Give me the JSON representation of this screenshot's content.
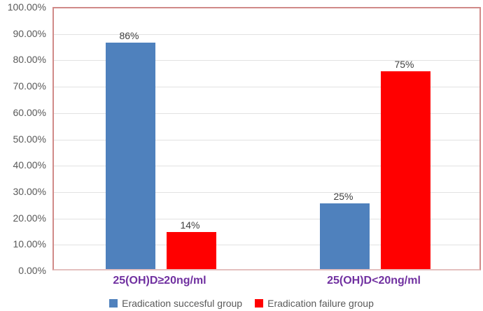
{
  "chart_data": {
    "type": "bar",
    "title": "",
    "categories": [
      "25(OH)D≥20ng/ml",
      "25(OH)D<20ng/ml"
    ],
    "series": [
      {
        "name": "Eradication succesful group",
        "color": "#4F81BD",
        "values": [
          86,
          25
        ],
        "data_labels": [
          "86%",
          "25%"
        ]
      },
      {
        "name": "Eradication failure group",
        "color": "#FF0000",
        "values": [
          14,
          75
        ],
        "data_labels": [
          "14%",
          "75%"
        ]
      }
    ],
    "ylim": [
      0,
      100
    ],
    "y_tick_step": 10,
    "y_tick_labels": [
      "0.00%",
      "10.00%",
      "20.00%",
      "30.00%",
      "40.00%",
      "50.00%",
      "60.00%",
      "70.00%",
      "80.00%",
      "90.00%",
      "100.00%"
    ],
    "grid": true,
    "legend_position": "bottom",
    "colors": {
      "category_label": "#7030A0",
      "axis_tick_label": "#595959",
      "data_label": "#3f3f3f",
      "gridline": "#e2e2e2",
      "plot_border": "#d08a88"
    }
  }
}
